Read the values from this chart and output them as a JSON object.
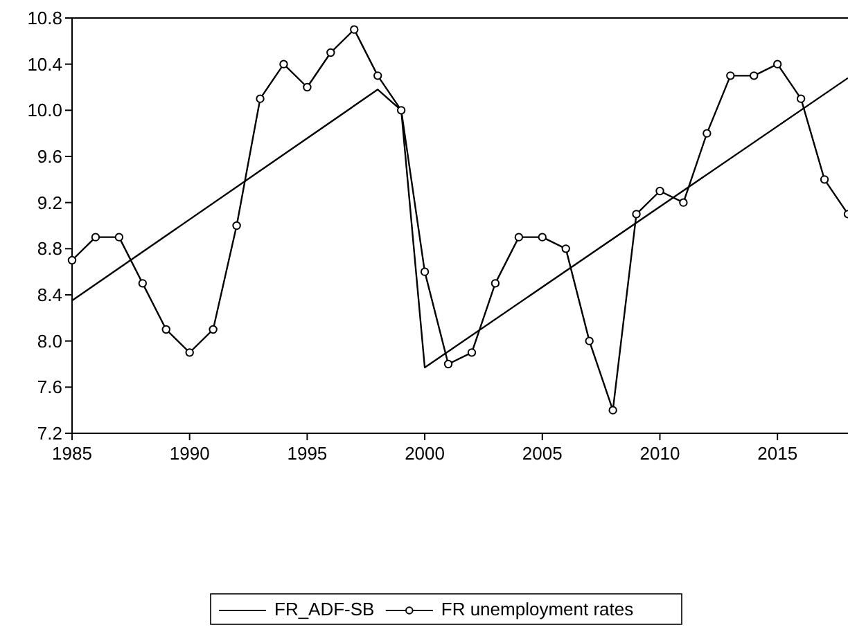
{
  "chart_data": {
    "type": "line",
    "xlim": [
      1985,
      2018
    ],
    "xticks": [
      1985,
      1990,
      1995,
      2000,
      2005,
      2010,
      2015
    ],
    "ylim": [
      7.2,
      10.8
    ],
    "yticks": [
      {
        "value": 7.2,
        "label": "7.2"
      },
      {
        "value": 7.6,
        "label": "7.6"
      },
      {
        "value": 8.0,
        "label": "8.0"
      },
      {
        "value": 8.4,
        "label": "8.4"
      },
      {
        "value": 8.8,
        "label": "8.8"
      },
      {
        "value": 9.2,
        "label": "9.2"
      },
      {
        "value": 9.6,
        "label": "9.6"
      },
      {
        "value": 10.0,
        "label": "10.0"
      },
      {
        "value": 10.4,
        "label": "10.4"
      },
      {
        "value": 10.8,
        "label": "10.8"
      }
    ],
    "grid": false,
    "legend": "bottom",
    "series": [
      {
        "name": "FR_ADF-SB",
        "color": "#000000",
        "marker": "none",
        "x": [
          1985,
          1998,
          1999,
          2000,
          2018
        ],
        "values": [
          8.35,
          10.18,
          10.0,
          7.77,
          10.28
        ]
      },
      {
        "name": "FR unemployment rates",
        "color": "#000000",
        "marker": "circle",
        "x": [
          1985,
          1986,
          1987,
          1988,
          1989,
          1990,
          1991,
          1992,
          1993,
          1994,
          1995,
          1996,
          1997,
          1998,
          1999,
          2000,
          2001,
          2002,
          2003,
          2004,
          2005,
          2006,
          2007,
          2008,
          2009,
          2010,
          2011,
          2012,
          2013,
          2014,
          2015,
          2016,
          2017,
          2018
        ],
        "values": [
          8.7,
          8.9,
          8.9,
          8.5,
          8.1,
          7.9,
          8.1,
          9.0,
          10.1,
          10.4,
          10.2,
          10.5,
          10.7,
          10.3,
          10.0,
          8.6,
          7.8,
          7.9,
          8.5,
          8.9,
          8.9,
          8.8,
          8.0,
          7.4,
          9.1,
          9.3,
          9.2,
          9.8,
          10.3,
          10.3,
          10.4,
          10.1,
          9.4,
          9.1
        ]
      }
    ]
  }
}
